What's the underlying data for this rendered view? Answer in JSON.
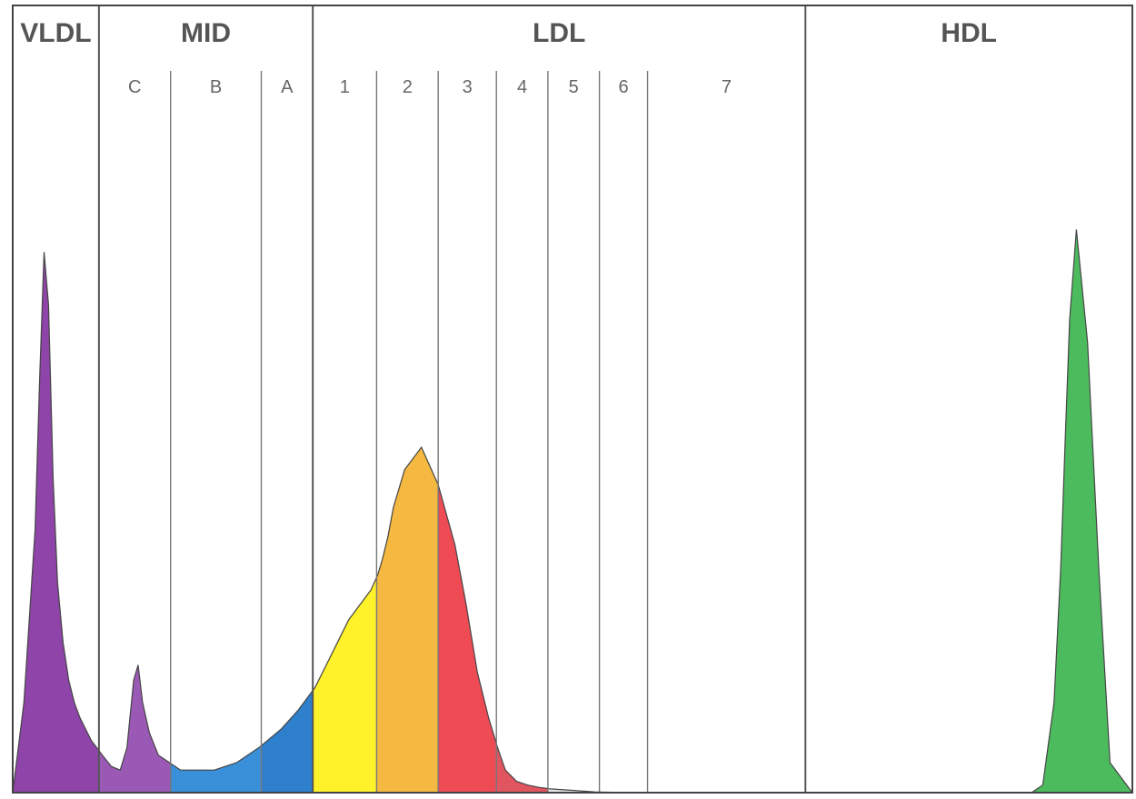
{
  "chart_data": {
    "type": "area",
    "title": "",
    "xlabel": "",
    "ylabel": "",
    "grid": false,
    "groups": [
      {
        "label": "VLDL",
        "subfractions": [
          {
            "label": "",
            "color": "#8e44a8"
          }
        ]
      },
      {
        "label": "MID",
        "subfractions": [
          {
            "label": "C",
            "color": "#9b59b6"
          },
          {
            "label": "B",
            "color": "#3a8fd9"
          },
          {
            "label": "A",
            "color": "#2e7fcc"
          }
        ]
      },
      {
        "label": "LDL",
        "subfractions": [
          {
            "label": "1",
            "color": "#fff22a"
          },
          {
            "label": "2",
            "color": "#f5b942"
          },
          {
            "label": "3",
            "color": "#ee4b55"
          },
          {
            "label": "4",
            "color": "#e05560"
          },
          {
            "label": "5",
            "color": "#e8e8e8"
          },
          {
            "label": "6",
            "color": "#e8e8e8"
          },
          {
            "label": "7",
            "color": "#e8e8e8"
          }
        ]
      },
      {
        "label": "HDL",
        "subfractions": [
          {
            "label": "",
            "color": "#4cbb5e"
          }
        ]
      }
    ],
    "x_domain": [
      0,
      100
    ],
    "y_domain": [
      0,
      100
    ],
    "band_edges": [
      0,
      7.7,
      14.1,
      22.2,
      26.8,
      32.5,
      38.0,
      43.2,
      47.8,
      52.4,
      56.7,
      70.8,
      100
    ],
    "profile": {
      "x": [
        0,
        1.0,
        2.0,
        2.4,
        2.8,
        3.2,
        3.6,
        4.0,
        4.5,
        5.0,
        5.5,
        6.0,
        7.0,
        8.0,
        8.8,
        9.6,
        10.2,
        10.8,
        11.2,
        11.6,
        12.2,
        13.0,
        14.0,
        15.0,
        16.5,
        18.0,
        20.0,
        22.0,
        24.0,
        25.5,
        27.0,
        28.0,
        29.0,
        30.0,
        31.0,
        32.0,
        32.6,
        33.0,
        33.5,
        34.0,
        35.0,
        36.5,
        38.0,
        39.5,
        40.5,
        41.5,
        42.5,
        43.3,
        44.0,
        45.0,
        46.0,
        47.0,
        48.0,
        50.0,
        52.0,
        55.0,
        60.0,
        70.0,
        80.0,
        88.0,
        91.0,
        92.0,
        93.0,
        93.6,
        94.0,
        94.4,
        95.0,
        96.0,
        97.0,
        98.0,
        100.0
      ],
      "y": [
        0,
        12,
        35,
        55,
        72,
        65,
        42,
        28,
        20,
        15,
        12,
        10,
        7,
        5,
        3.5,
        3,
        6,
        15,
        17,
        12,
        8,
        5,
        4,
        3,
        3,
        3,
        4,
        6,
        8.5,
        11,
        14,
        17,
        20,
        23,
        25,
        27,
        29,
        31,
        34,
        38,
        43,
        46,
        41,
        33,
        25,
        16,
        10,
        6,
        3,
        1.5,
        1.0,
        0.7,
        0.5,
        0.3,
        0.1,
        0,
        0,
        0,
        0,
        0,
        0,
        1,
        12,
        30,
        47,
        63,
        75,
        60,
        30,
        4,
        0
      ]
    }
  }
}
